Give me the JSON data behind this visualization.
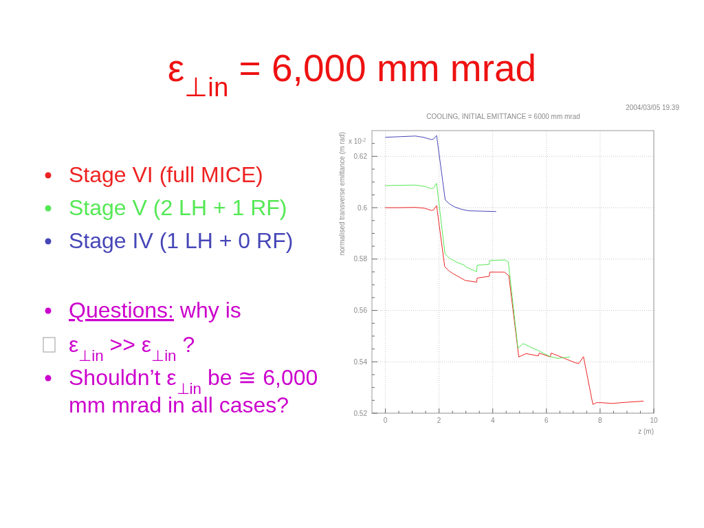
{
  "chart_data": {
    "type": "line",
    "title": "ε$_{⊥in}$ = 6,000 mm mrad",
    "subtitle": "COOLING, INITIAL EMITTANCE = 6000 mm mrad",
    "xlabel": "z (m)",
    "ylabel": "normalised transverse emittance (m rad)",
    "xlim": [
      -0.5,
      10
    ],
    "xticks": [
      0,
      {
        "value": 0.5,
        "label": null
      },
      {
        "value": 1,
        "label": null
      },
      {
        "value": 1.5,
        "label": null
      },
      2,
      {
        "value": 2.5,
        "label": null
      },
      {
        "value": 3,
        "label": null
      },
      {
        "value": 3.5,
        "label": null
      },
      4,
      {
        "value": 4.5,
        "label": null
      },
      {
        "value": 5,
        "label": null
      },
      {
        "value": 5.5,
        "label": null
      },
      6,
      {
        "value": 6.5,
        "label": null
      },
      {
        "value": 7,
        "label": null
      },
      {
        "value": 7.5,
        "label": null
      },
      8,
      {
        "value": 8.5,
        "label": null
      },
      {
        "value": 9,
        "label": null
      },
      {
        "value": 9.5,
        "label": null
      },
      10
    ],
    "ylim": [
      0.52,
      0.63
    ],
    "yticks": [
      0.52,
      {
        "value": 0.525,
        "label": null
      },
      {
        "value": 0.53,
        "label": null
      },
      {
        "value": 0.535,
        "label": null
      },
      0.54,
      {
        "value": 0.545,
        "label": null
      },
      {
        "value": 0.55,
        "label": null
      },
      {
        "value": 0.555,
        "label": null
      },
      0.56,
      {
        "value": 0.565,
        "label": null
      },
      {
        "value": 0.57,
        "label": null
      },
      {
        "value": 0.575,
        "label": null
      },
      0.58,
      {
        "value": 0.585,
        "label": null
      },
      {
        "value": 0.59,
        "label": null
      },
      {
        "value": 0.595,
        "label": null
      },
      0.6,
      {
        "value": 0.605,
        "label": null
      },
      {
        "value": 0.61,
        "label": null
      },
      {
        "value": 0.615,
        "label": null
      },
      0.62,
      {
        "value": 0.625,
        "label": null
      }
    ],
    "grid": true,
    "legend": "left",
    "series": [
      {
        "name": "Stage VI (full MICE)",
        "color": "#ee2222",
        "x": [
          0,
          0.43,
          1.12,
          1.46,
          1.72,
          1.8,
          1.91,
          2.21,
          2.38,
          2.51,
          2.97,
          3.4,
          3.42,
          3.87,
          3.89,
          4.34,
          4.44,
          4.6,
          4.97,
          5.24,
          5.7,
          5.73,
          6.14,
          6.18,
          6.61,
          7.08,
          7.21,
          7.38,
          7.73,
          7.86,
          8.03,
          8.45,
          9.05,
          9.61
        ],
        "values": [
          0.6,
          0.6,
          0.6001,
          0.5998,
          0.5989,
          0.5992,
          0.6008,
          0.5771,
          0.5753,
          0.5744,
          0.5717,
          0.571,
          0.5726,
          0.5733,
          0.5749,
          0.5749,
          0.5749,
          0.5735,
          0.5419,
          0.5432,
          0.5423,
          0.5434,
          0.5419,
          0.5434,
          0.5416,
          0.5396,
          0.5394,
          0.542,
          0.5234,
          0.5241,
          0.5241,
          0.5238,
          0.5243,
          0.5247
        ]
      },
      {
        "name": "Stage V (2 LH + 1 RF)",
        "color": "#55e855",
        "x": [
          0,
          0.43,
          1.12,
          1.46,
          1.72,
          1.8,
          1.91,
          2.22,
          2.38,
          2.51,
          2.72,
          2.95,
          2.97,
          3.4,
          3.42,
          3.87,
          3.89,
          4.34,
          4.44,
          4.58,
          4.94,
          5.13,
          5.71,
          6.14,
          6.44,
          6.61,
          6.87
        ],
        "values": [
          0.6086,
          0.6087,
          0.6088,
          0.6083,
          0.6074,
          0.6077,
          0.6095,
          0.5821,
          0.5804,
          0.5796,
          0.5785,
          0.5776,
          0.5771,
          0.5751,
          0.5776,
          0.578,
          0.5794,
          0.5796,
          0.5797,
          0.5789,
          0.5452,
          0.5471,
          0.5443,
          0.542,
          0.5413,
          0.5416,
          0.5419
        ]
      },
      {
        "name": "Stage IV (1 LH + 0 RF)",
        "color": "#4646b8",
        "x": [
          0,
          0.43,
          1.12,
          1.42,
          1.72,
          1.8,
          1.91,
          2.23,
          2.4,
          2.58,
          2.83,
          3.09,
          3.43,
          3.78,
          4.12
        ],
        "values": [
          0.6274,
          0.6276,
          0.6279,
          0.6274,
          0.6265,
          0.6268,
          0.6281,
          0.603,
          0.6014,
          0.6003,
          0.5994,
          0.5988,
          0.5987,
          0.5986,
          0.5985
        ]
      }
    ],
    "annotations": [
      "2004/03/05  19.39",
      "x 10$^{-2}$",
      "Questions: why is",
      "ε$_{⊥in}$  >> ε$_{⊥in}$  ?",
      "Shouldn’t ε$_{⊥in}$ be ≅ 6,000 mm mrad in all cases?"
    ]
  }
}
